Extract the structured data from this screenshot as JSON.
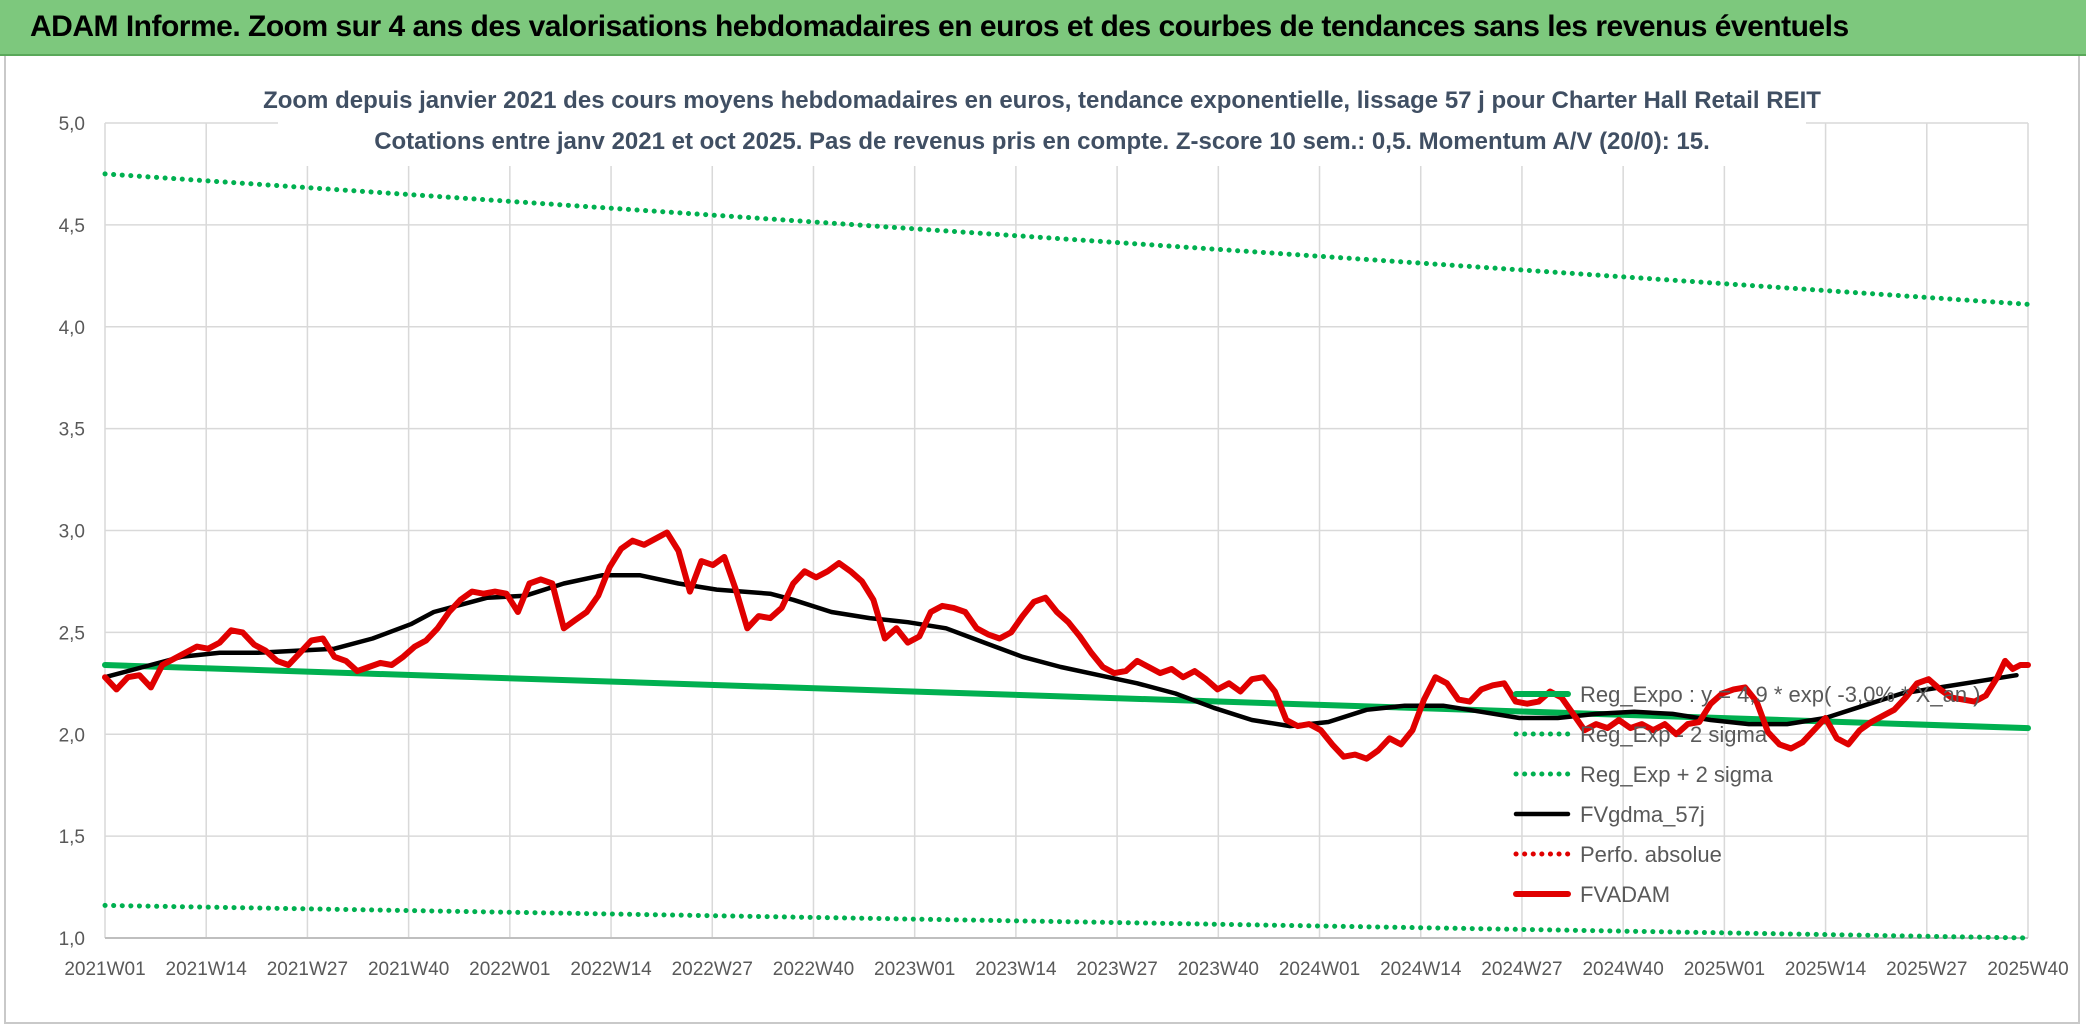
{
  "banner": {
    "title": "ADAM Informe. Zoom sur 4 ans des valorisations hebdomadaires en euros et des courbes de tendances sans les revenus éventuels"
  },
  "chart_data": {
    "type": "line",
    "title": "Zoom depuis janvier 2021 des cours moyens hebdomadaires en euros, tendance exponentielle, lissage 57 j pour Charter Hall Retail REIT",
    "subtitle": "Cotations entre janv 2021 et oct 2025. Pas de revenus pris en compte. Z-score 10 sem.: 0,5. Momentum A/V (20/0): 15.",
    "xlabel": "",
    "ylabel": "",
    "ylim": [
      1.0,
      5.0
    ],
    "yticks": [
      "1,0",
      "1,5",
      "2,0",
      "2,5",
      "3,0",
      "3,5",
      "4,0",
      "4,5",
      "5,0"
    ],
    "x_ticks": [
      "2021W01",
      "2021W14",
      "2021W27",
      "2021W40",
      "2022W01",
      "2022W14",
      "2022W27",
      "2022W40",
      "2023W01",
      "2023W14",
      "2023W27",
      "2023W40",
      "2024W01",
      "2024W14",
      "2024W27",
      "2024W40",
      "2025W01",
      "2025W14",
      "2025W27",
      "2025W40"
    ],
    "grid": true,
    "legend_position": "right",
    "series": [
      {
        "name": "Reg_Expo : y = 4,9 * exp( -3,0% * X_an )",
        "style": "solid-thick",
        "color": "#00b050",
        "points": [
          [
            0,
            2.34
          ],
          [
            19,
            2.03
          ]
        ]
      },
      {
        "name": "Reg_Exp - 2 sigma",
        "style": "dotted",
        "color": "#00b050",
        "points": [
          [
            0,
            1.16
          ],
          [
            19,
            1.0
          ]
        ]
      },
      {
        "name": "Reg_Exp + 2 sigma",
        "style": "dotted",
        "color": "#00b050",
        "points": [
          [
            0,
            4.75
          ],
          [
            19,
            4.11
          ]
        ]
      },
      {
        "name": "FVgdma_57j",
        "style": "solid",
        "color": "#000000",
        "points": [
          [
            0,
            2.28
          ],
          [
            0.5,
            2.33
          ],
          [
            1,
            2.38
          ],
          [
            1.5,
            2.4
          ],
          [
            2,
            2.4
          ],
          [
            2.5,
            2.41
          ],
          [
            3,
            2.42
          ],
          [
            3.5,
            2.47
          ],
          [
            4,
            2.54
          ],
          [
            4.3,
            2.6
          ],
          [
            4.7,
            2.64
          ],
          [
            5,
            2.67
          ],
          [
            5.5,
            2.68
          ],
          [
            6,
            2.74
          ],
          [
            6.5,
            2.78
          ],
          [
            7,
            2.78
          ],
          [
            7.5,
            2.74
          ],
          [
            8,
            2.71
          ],
          [
            8.7,
            2.69
          ],
          [
            9,
            2.66
          ],
          [
            9.5,
            2.6
          ],
          [
            10,
            2.57
          ],
          [
            10.5,
            2.55
          ],
          [
            11,
            2.52
          ],
          [
            11.5,
            2.45
          ],
          [
            12,
            2.38
          ],
          [
            12.5,
            2.33
          ],
          [
            13,
            2.29
          ],
          [
            13.5,
            2.25
          ],
          [
            14,
            2.2
          ],
          [
            14.5,
            2.13
          ],
          [
            15,
            2.07
          ],
          [
            15.5,
            2.04
          ],
          [
            16,
            2.06
          ],
          [
            16.5,
            2.12
          ],
          [
            17,
            2.14
          ],
          [
            17.5,
            2.14
          ],
          [
            18,
            2.11
          ],
          [
            18.5,
            2.08
          ],
          [
            19,
            2.08
          ],
          [
            19.5,
            2.1
          ],
          [
            20,
            2.11
          ],
          [
            20.5,
            2.1
          ],
          [
            21,
            2.07
          ],
          [
            21.5,
            2.05
          ],
          [
            22,
            2.05
          ],
          [
            22.5,
            2.08
          ],
          [
            23,
            2.14
          ],
          [
            23.5,
            2.2
          ],
          [
            24,
            2.23
          ],
          [
            24.5,
            2.26
          ],
          [
            25,
            2.29
          ]
        ]
      },
      {
        "name": "Perfo. absolue",
        "style": "dotted",
        "color": "#e00000",
        "points": []
      },
      {
        "name": "FVADAM",
        "style": "solid-thick",
        "color": "#e00000",
        "points": [
          [
            0,
            2.28
          ],
          [
            0.15,
            2.22
          ],
          [
            0.3,
            2.28
          ],
          [
            0.45,
            2.29
          ],
          [
            0.6,
            2.23
          ],
          [
            0.75,
            2.34
          ],
          [
            0.9,
            2.37
          ],
          [
            1.05,
            2.4
          ],
          [
            1.2,
            2.43
          ],
          [
            1.35,
            2.42
          ],
          [
            1.5,
            2.45
          ],
          [
            1.65,
            2.51
          ],
          [
            1.8,
            2.5
          ],
          [
            1.95,
            2.44
          ],
          [
            2.1,
            2.41
          ],
          [
            2.25,
            2.36
          ],
          [
            2.4,
            2.34
          ],
          [
            2.55,
            2.4
          ],
          [
            2.7,
            2.46
          ],
          [
            2.85,
            2.47
          ],
          [
            3,
            2.38
          ],
          [
            3.15,
            2.36
          ],
          [
            3.3,
            2.31
          ],
          [
            3.45,
            2.33
          ],
          [
            3.6,
            2.35
          ],
          [
            3.75,
            2.34
          ],
          [
            3.9,
            2.38
          ],
          [
            4.05,
            2.43
          ],
          [
            4.2,
            2.46
          ],
          [
            4.35,
            2.52
          ],
          [
            4.5,
            2.6
          ],
          [
            4.65,
            2.66
          ],
          [
            4.8,
            2.7
          ],
          [
            4.95,
            2.69
          ],
          [
            5.1,
            2.7
          ],
          [
            5.25,
            2.69
          ],
          [
            5.4,
            2.6
          ],
          [
            5.55,
            2.74
          ],
          [
            5.7,
            2.76
          ],
          [
            5.85,
            2.74
          ],
          [
            6,
            2.52
          ],
          [
            6.15,
            2.56
          ],
          [
            6.3,
            2.6
          ],
          [
            6.45,
            2.68
          ],
          [
            6.6,
            2.82
          ],
          [
            6.75,
            2.91
          ],
          [
            6.9,
            2.95
          ],
          [
            7.05,
            2.93
          ],
          [
            7.2,
            2.96
          ],
          [
            7.35,
            2.99
          ],
          [
            7.5,
            2.9
          ],
          [
            7.65,
            2.7
          ],
          [
            7.8,
            2.85
          ],
          [
            7.95,
            2.83
          ],
          [
            8.1,
            2.87
          ],
          [
            8.25,
            2.71
          ],
          [
            8.4,
            2.52
          ],
          [
            8.55,
            2.58
          ],
          [
            8.7,
            2.57
          ],
          [
            8.85,
            2.62
          ],
          [
            9,
            2.74
          ],
          [
            9.15,
            2.8
          ],
          [
            9.3,
            2.77
          ],
          [
            9.45,
            2.8
          ],
          [
            9.6,
            2.84
          ],
          [
            9.75,
            2.8
          ],
          [
            9.9,
            2.75
          ],
          [
            10.05,
            2.66
          ],
          [
            10.2,
            2.47
          ],
          [
            10.35,
            2.52
          ],
          [
            10.5,
            2.45
          ],
          [
            10.65,
            2.48
          ],
          [
            10.8,
            2.6
          ],
          [
            10.95,
            2.63
          ],
          [
            11.1,
            2.62
          ],
          [
            11.25,
            2.6
          ],
          [
            11.4,
            2.52
          ],
          [
            11.55,
            2.49
          ],
          [
            11.7,
            2.47
          ],
          [
            11.85,
            2.5
          ],
          [
            12,
            2.58
          ],
          [
            12.15,
            2.65
          ],
          [
            12.3,
            2.67
          ],
          [
            12.45,
            2.6
          ],
          [
            12.6,
            2.55
          ],
          [
            12.75,
            2.48
          ],
          [
            12.9,
            2.4
          ],
          [
            13.05,
            2.33
          ],
          [
            13.2,
            2.3
          ],
          [
            13.35,
            2.31
          ],
          [
            13.5,
            2.36
          ],
          [
            13.65,
            2.33
          ],
          [
            13.8,
            2.3
          ],
          [
            13.95,
            2.32
          ],
          [
            14.1,
            2.28
          ],
          [
            14.25,
            2.31
          ],
          [
            14.4,
            2.27
          ],
          [
            14.55,
            2.22
          ],
          [
            14.7,
            2.25
          ],
          [
            14.85,
            2.21
          ],
          [
            15,
            2.27
          ],
          [
            15.15,
            2.28
          ],
          [
            15.3,
            2.21
          ],
          [
            15.45,
            2.07
          ],
          [
            15.6,
            2.04
          ],
          [
            15.75,
            2.05
          ],
          [
            15.9,
            2.02
          ],
          [
            16.05,
            1.95
          ],
          [
            16.2,
            1.89
          ],
          [
            16.35,
            1.9
          ],
          [
            16.5,
            1.88
          ],
          [
            16.65,
            1.92
          ],
          [
            16.8,
            1.98
          ],
          [
            16.95,
            1.95
          ],
          [
            17.1,
            2.02
          ],
          [
            17.25,
            2.17
          ],
          [
            17.4,
            2.28
          ],
          [
            17.55,
            2.25
          ],
          [
            17.7,
            2.17
          ],
          [
            17.85,
            2.16
          ],
          [
            18,
            2.22
          ],
          [
            18.15,
            2.24
          ],
          [
            18.3,
            2.25
          ],
          [
            18.45,
            2.16
          ],
          [
            18.6,
            2.15
          ],
          [
            18.75,
            2.16
          ],
          [
            18.9,
            2.21
          ],
          [
            19.05,
            2.18
          ],
          [
            19.2,
            2.1
          ],
          [
            19.35,
            2.02
          ],
          [
            19.5,
            2.05
          ],
          [
            19.65,
            2.03
          ],
          [
            19.8,
            2.07
          ],
          [
            19.95,
            2.03
          ],
          [
            20.1,
            2.05
          ],
          [
            20.25,
            2.02
          ],
          [
            20.4,
            2.05
          ],
          [
            20.55,
            2.0
          ],
          [
            20.7,
            2.05
          ],
          [
            20.85,
            2.06
          ],
          [
            21,
            2.15
          ],
          [
            21.15,
            2.2
          ],
          [
            21.3,
            2.22
          ],
          [
            21.45,
            2.23
          ],
          [
            21.6,
            2.16
          ],
          [
            21.75,
            2.01
          ],
          [
            21.9,
            1.95
          ],
          [
            22.05,
            1.93
          ],
          [
            22.2,
            1.96
          ],
          [
            22.35,
            2.02
          ],
          [
            22.5,
            2.08
          ],
          [
            22.65,
            1.98
          ],
          [
            22.8,
            1.95
          ],
          [
            22.95,
            2.02
          ],
          [
            23.1,
            2.06
          ],
          [
            23.25,
            2.09
          ],
          [
            23.4,
            2.12
          ],
          [
            23.55,
            2.18
          ],
          [
            23.7,
            2.25
          ],
          [
            23.85,
            2.27
          ],
          [
            24,
            2.22
          ],
          [
            24.15,
            2.18
          ],
          [
            24.3,
            2.17
          ],
          [
            24.45,
            2.16
          ],
          [
            24.6,
            2.19
          ],
          [
            24.75,
            2.28
          ],
          [
            24.85,
            2.36
          ],
          [
            24.95,
            2.32
          ],
          [
            25.05,
            2.34
          ],
          [
            25.15,
            2.34
          ]
        ]
      }
    ]
  }
}
